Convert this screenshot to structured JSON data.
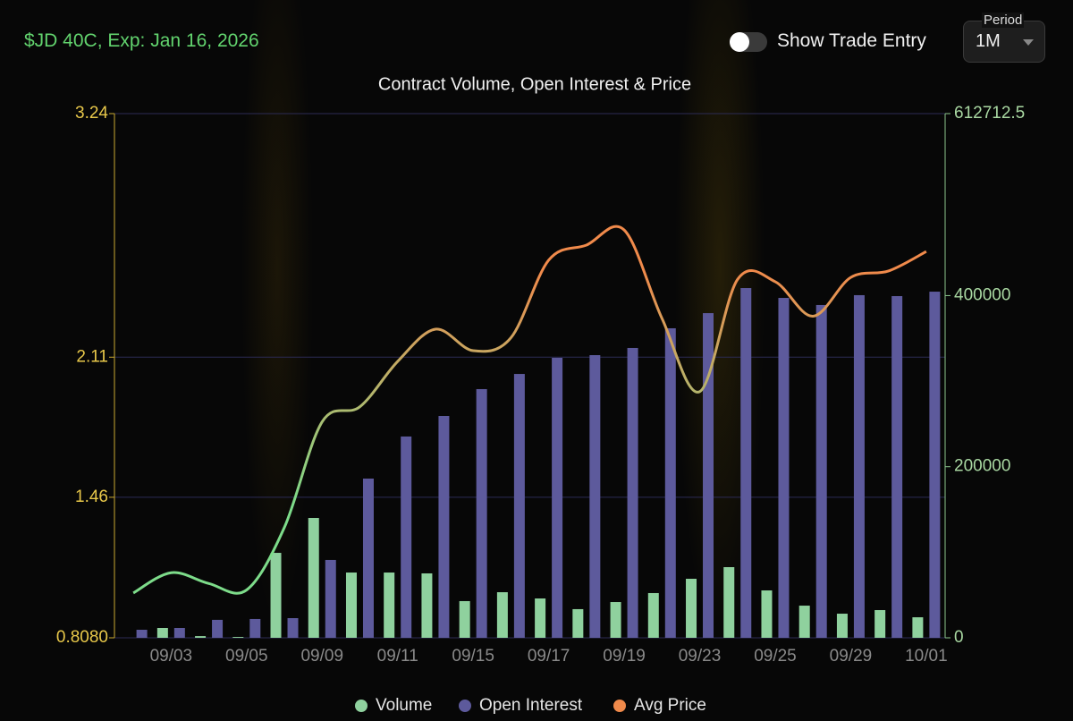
{
  "header": {
    "contract": "$JD 40C, Exp: Jan 16, 2026",
    "toggle_label": "Show Trade Entry",
    "period_label": "Period",
    "period_value": "1M"
  },
  "chart_data": {
    "type": "bar",
    "title": "Contract Volume, Open Interest & Price",
    "categories": [
      null,
      "09/03",
      null,
      "09/05",
      null,
      "09/09",
      null,
      "09/11",
      null,
      "09/15",
      null,
      "09/17",
      null,
      "09/19",
      null,
      "09/23",
      null,
      "09/25",
      null,
      "09/29",
      null,
      "10/01"
    ],
    "series": [
      {
        "name": "Volume",
        "type": "bar",
        "axis": "y2",
        "color": "#8fd19e",
        "values": [
          0,
          11500,
          2000,
          1000,
          99300,
          140100,
          76300,
          76300,
          75300,
          42900,
          53300,
          46000,
          33500,
          41800,
          52300,
          69000,
          82600,
          55400,
          37600,
          28200,
          32400,
          24000
        ]
      },
      {
        "name": "Open Interest",
        "type": "bar",
        "axis": "y2",
        "color": "#5d5a9c",
        "values": [
          9400,
          11500,
          21000,
          22000,
          23000,
          91000,
          186100,
          235300,
          259300,
          290700,
          308400,
          327300,
          330400,
          338800,
          361800,
          379500,
          408800,
          397300,
          389000,
          400500,
          399400,
          404600
        ]
      },
      {
        "name": "Avg Price",
        "type": "line",
        "color": "#f08a4b",
        "line_start_color": "#7ddc8a",
        "values": [
          1.016,
          1.11,
          1.06,
          1.03,
          1.32,
          1.81,
          1.88,
          2.09,
          2.24,
          2.14,
          2.2,
          2.56,
          2.63,
          2.7,
          2.29,
          1.95,
          2.47,
          2.46,
          2.3,
          2.48,
          2.51,
          2.6
        ]
      }
    ],
    "ylim": [
      0.808,
      3.24
    ],
    "yticks": [
      {
        "value": 0.808,
        "label": "0.8080"
      },
      1.46,
      2.11,
      3.24
    ],
    "y2lim": [
      0,
      612712.5
    ],
    "y2ticks": [
      0,
      200000,
      400000,
      612712.5
    ],
    "grid": true,
    "legend": "bottom"
  }
}
